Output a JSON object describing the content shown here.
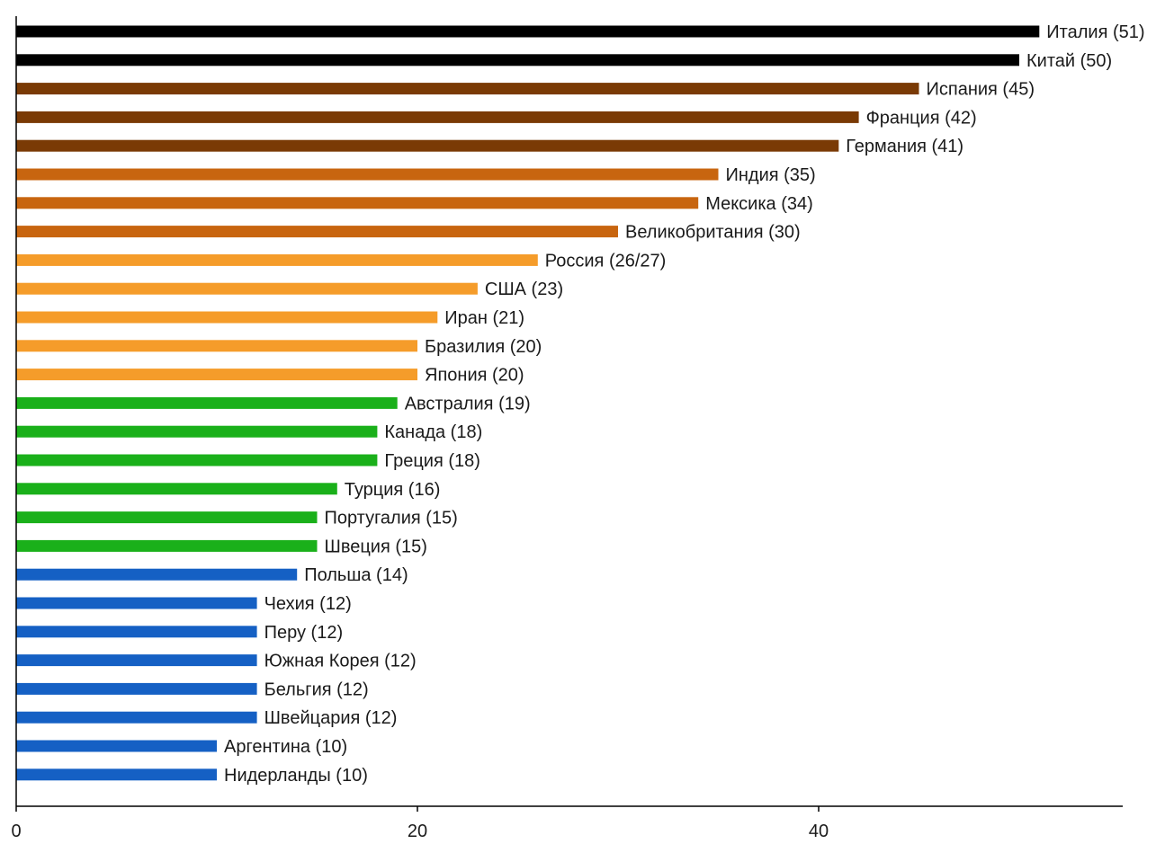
{
  "chart_data": {
    "type": "bar",
    "orientation": "horizontal",
    "title": "",
    "xlabel": "",
    "ylabel": "",
    "xlim": [
      0,
      55
    ],
    "x_ticks": [
      "0",
      "20",
      "40"
    ],
    "x_tick_values": [
      0,
      20,
      40
    ],
    "grid": false,
    "legend": "none",
    "categories": [
      "Италия",
      "Китай",
      "Испания",
      "Франция",
      "Германия",
      "Индия",
      "Мексика",
      "Великобритания",
      "Россия",
      "США",
      "Иран",
      "Бразилия",
      "Япония",
      "Австралия",
      "Канада",
      "Греция",
      "Турция",
      "Португалия",
      "Швеция",
      "Польша",
      "Чехия",
      "Перу",
      "Южная Корея",
      "Бельгия",
      "Швейцария",
      "Аргентина",
      "Нидерланды"
    ],
    "values": [
      51,
      50,
      45,
      42,
      41,
      35,
      34,
      30,
      26,
      23,
      21,
      20,
      20,
      19,
      18,
      18,
      16,
      15,
      15,
      14,
      12,
      12,
      12,
      12,
      12,
      10,
      10
    ],
    "labels": [
      "Италия (51)",
      "Китай (50)",
      "Испания (45)",
      "Франция (42)",
      "Германия (41)",
      "Индия (35)",
      "Мексика (34)",
      "Великобритания (30)",
      "Россия (26/27)",
      "США (23)",
      "Иран (21)",
      "Бразилия (20)",
      "Япония (20)",
      "Австралия (19)",
      "Канада (18)",
      "Греция (18)",
      "Турция (16)",
      "Португалия (15)",
      "Швеция (15)",
      "Польша (14)",
      "Чехия (12)",
      "Перу (12)",
      "Южная Корея (12)",
      "Бельгия (12)",
      "Швейцария (12)",
      "Аргентина (10)",
      "Нидерланды (10)"
    ],
    "colors": [
      "#000000",
      "#000000",
      "#7a3a05",
      "#7a3a05",
      "#7a3a05",
      "#c8650f",
      "#c8650f",
      "#c8650f",
      "#f59c2a",
      "#f59c2a",
      "#f59c2a",
      "#f59c2a",
      "#f59c2a",
      "#1ab01a",
      "#1ab01a",
      "#1ab01a",
      "#1ab01a",
      "#1ab01a",
      "#1ab01a",
      "#1560c4",
      "#1560c4",
      "#1560c4",
      "#1560c4",
      "#1560c4",
      "#1560c4",
      "#1560c4",
      "#1560c4"
    ]
  }
}
